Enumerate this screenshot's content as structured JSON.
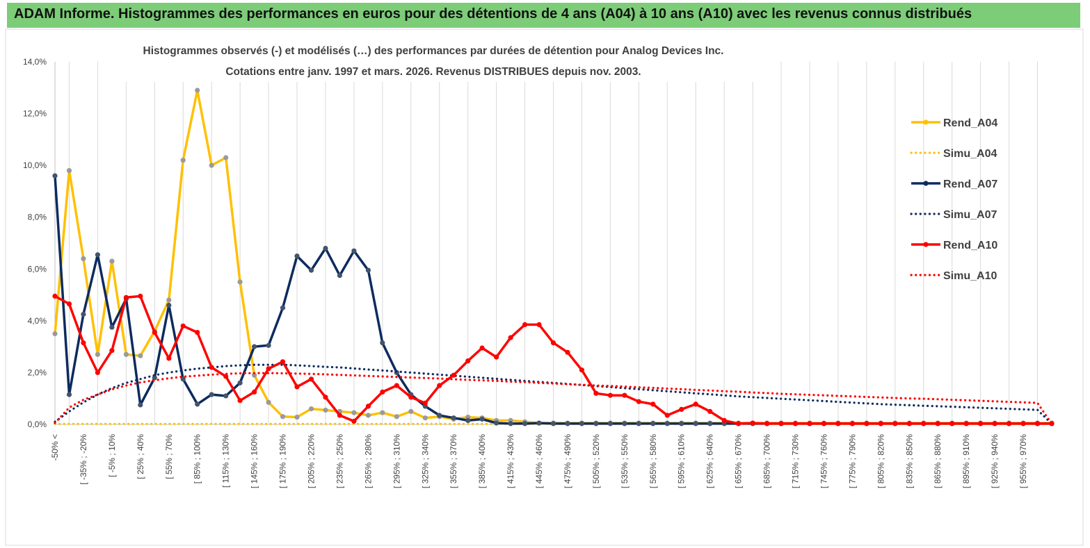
{
  "banner": {
    "title": "ADAM Informe. Histogrammes des performances en euros pour des détentions de 4 ans (A04) à 10 ans (A10) avec les revenus connus distribués",
    "background": "#7ccc78"
  },
  "chart_data": {
    "type": "line",
    "title": "Histogrammes observés (-)  et modélisés (…) des performances par durées de détention pour Analog Devices Inc.",
    "subtitle": "Cotations entre janv. 1997 et mars. 2026. Revenus DISTRIBUES depuis nov. 2003.",
    "ylim": [
      0,
      14
    ],
    "y_tick_labels": [
      "0,0%",
      "2,0%",
      "4,0%",
      "6,0%",
      "8,0%",
      "10,0%",
      "12,0%",
      "14,0%"
    ],
    "grid": "vertical",
    "legend_position": "right",
    "x_tick_labels": [
      "-50% <",
      "[ -35% ; -20%",
      "[ -5% ; 10%",
      "[ 25% ; 40%",
      "[ 55% ; 70%",
      "[ 85% ; 100%",
      "[ 115% ; 130%",
      "[ 145% ; 160%",
      "[ 175% ; 190%",
      "[ 205% ; 220%",
      "[ 235% ; 250%",
      "[ 265% ; 280%",
      "[ 295% ; 310%",
      "[ 325% ; 340%",
      "[ 355% ; 370%",
      "[ 385% ; 400%",
      "[ 415% ; 430%",
      "[ 445% ; 460%",
      "[ 475% ; 490%",
      "[ 505% ; 520%",
      "[ 535% ; 550%",
      "[ 565% ; 580%",
      "[ 595% ; 610%",
      "[ 625% ; 640%",
      "[ 655% ; 670%",
      "[ 685% ; 700%",
      "[ 715% ; 730%",
      "[ 745% ; 760%",
      "[ 775% ; 790%",
      "[ 805% ; 820%",
      "[ 835% ; 850%",
      "[ 865% ; 880%",
      "[ 895% ; 910%",
      "[ 925% ; 940%",
      "[ 955% ; 970%"
    ],
    "point_count": 71,
    "series": [
      {
        "name": "Rend_A04",
        "style": "solid",
        "color": "#ffc000",
        "values": [
          3.5,
          9.8,
          6.4,
          2.7,
          6.3,
          2.7,
          2.65,
          3.6,
          4.8,
          10.2,
          12.9,
          10.0,
          10.3,
          5.5,
          1.9,
          0.85,
          0.3,
          0.28,
          0.6,
          0.55,
          0.5,
          0.45,
          0.35,
          0.45,
          0.3,
          0.5,
          0.25,
          0.3,
          0.2,
          0.28,
          0.25,
          0.15,
          0.15,
          0.1,
          0.05,
          0.05,
          0.05,
          0.05,
          0.05,
          0.05,
          0.05,
          0.05,
          0.05,
          0.05,
          0.05,
          0.05,
          0.05,
          0.05,
          0.05,
          0.05,
          0.05,
          0.05,
          0.05,
          0.05,
          0.05,
          0.05,
          0.05,
          0.05,
          0.05,
          0.05,
          0.05,
          0.05,
          0.05,
          0.05,
          0.05,
          0.05,
          0.05,
          0.05,
          0.05,
          0.05,
          0.05
        ]
      },
      {
        "name": "Simu_A04",
        "style": "dotted",
        "color": "#ffc000",
        "values": [
          0.02,
          0.02,
          0.02,
          0.02,
          0.02,
          0.02,
          0.02,
          0.02,
          0.02,
          0.02,
          0.02,
          0.02,
          0.02,
          0.02,
          0.02,
          0.02,
          0.02,
          0.02,
          0.02,
          0.02,
          0.02,
          0.02,
          0.02,
          0.02,
          0.02,
          0.02,
          0.02,
          0.02,
          0.02,
          0.02,
          0.02,
          0.02,
          0.02,
          0.02,
          0.02,
          0.02,
          0.02,
          0.02,
          0.02,
          0.02,
          0.02,
          0.02,
          0.02,
          0.02,
          0.02,
          0.02,
          0.02,
          0.02,
          0.02,
          0.02,
          0.02,
          0.02,
          0.02,
          0.02,
          0.02,
          0.02,
          0.02,
          0.02,
          0.02,
          0.02,
          0.02,
          0.02,
          0.02,
          0.02,
          0.02,
          0.02,
          0.02,
          0.02,
          0.02,
          0.02,
          0.02
        ]
      },
      {
        "name": "Rend_A07",
        "style": "solid",
        "color": "#0d2b5e",
        "values": [
          9.6,
          1.15,
          4.25,
          6.55,
          3.75,
          4.85,
          0.75,
          1.8,
          4.6,
          1.75,
          0.78,
          1.15,
          1.1,
          1.6,
          3.0,
          3.05,
          4.5,
          6.5,
          5.95,
          6.8,
          5.75,
          6.7,
          5.95,
          3.15,
          2.0,
          1.15,
          0.7,
          0.35,
          0.25,
          0.15,
          0.2,
          0.05,
          0.03,
          0.03,
          0.05,
          0.03,
          0.03,
          0.03,
          0.03,
          0.03,
          0.03,
          0.03,
          0.03,
          0.03,
          0.03,
          0.03,
          0.03,
          0.03,
          0.03,
          0.03,
          0.03,
          0.03,
          0.03,
          0.03,
          0.03,
          0.03,
          0.03,
          0.03,
          0.03,
          0.03,
          0.03,
          0.03,
          0.03,
          0.03,
          0.03,
          0.03,
          0.03,
          0.03,
          0.03,
          0.03,
          0.03
        ]
      },
      {
        "name": "Simu_A07",
        "style": "dotted",
        "color": "#0d2b5e",
        "values": [
          0.1,
          0.5,
          0.85,
          1.15,
          1.4,
          1.6,
          1.75,
          1.9,
          2.0,
          2.08,
          2.15,
          2.2,
          2.25,
          2.28,
          2.3,
          2.3,
          2.3,
          2.28,
          2.25,
          2.22,
          2.2,
          2.16,
          2.12,
          2.08,
          2.04,
          2.0,
          1.96,
          1.92,
          1.88,
          1.84,
          1.8,
          1.76,
          1.72,
          1.68,
          1.64,
          1.6,
          1.56,
          1.52,
          1.48,
          1.44,
          1.4,
          1.36,
          1.32,
          1.28,
          1.24,
          1.2,
          1.16,
          1.12,
          1.08,
          1.05,
          1.02,
          0.99,
          0.96,
          0.93,
          0.9,
          0.87,
          0.84,
          0.81,
          0.78,
          0.76,
          0.74,
          0.72,
          0.7,
          0.68,
          0.66,
          0.64,
          0.62,
          0.6,
          0.58,
          0.56,
          0.02
        ]
      },
      {
        "name": "Rend_A10",
        "style": "solid",
        "color": "#ff0000",
        "values": [
          4.95,
          4.65,
          3.15,
          2.0,
          2.85,
          4.9,
          4.95,
          3.55,
          2.55,
          3.8,
          3.55,
          2.2,
          1.85,
          0.92,
          1.25,
          2.15,
          2.42,
          1.45,
          1.75,
          1.05,
          0.35,
          0.12,
          0.7,
          1.25,
          1.5,
          1.05,
          0.82,
          1.5,
          1.9,
          2.45,
          2.95,
          2.6,
          3.35,
          3.85,
          3.85,
          3.15,
          2.78,
          2.1,
          1.2,
          1.12,
          1.12,
          0.88,
          0.78,
          0.35,
          0.58,
          0.78,
          0.5,
          0.15,
          0.03,
          0.05,
          0.03,
          0.03,
          0.03,
          0.03,
          0.03,
          0.03,
          0.03,
          0.03,
          0.03,
          0.03,
          0.03,
          0.03,
          0.03,
          0.03,
          0.03,
          0.03,
          0.03,
          0.03,
          0.03,
          0.03,
          0.03
        ]
      },
      {
        "name": "Simu_A10",
        "style": "dotted",
        "color": "#ff0000",
        "values": [
          0.05,
          0.65,
          0.95,
          1.15,
          1.35,
          1.5,
          1.62,
          1.7,
          1.78,
          1.84,
          1.88,
          1.92,
          1.95,
          1.97,
          1.98,
          1.98,
          1.97,
          1.96,
          1.95,
          1.93,
          1.91,
          1.89,
          1.87,
          1.85,
          1.83,
          1.81,
          1.79,
          1.77,
          1.74,
          1.72,
          1.7,
          1.68,
          1.65,
          1.63,
          1.6,
          1.58,
          1.55,
          1.53,
          1.5,
          1.48,
          1.46,
          1.43,
          1.41,
          1.38,
          1.36,
          1.33,
          1.31,
          1.28,
          1.26,
          1.23,
          1.21,
          1.18,
          1.16,
          1.14,
          1.12,
          1.1,
          1.08,
          1.06,
          1.04,
          1.02,
          1.0,
          0.99,
          0.97,
          0.95,
          0.93,
          0.91,
          0.89,
          0.87,
          0.85,
          0.83,
          0.02
        ]
      }
    ]
  }
}
